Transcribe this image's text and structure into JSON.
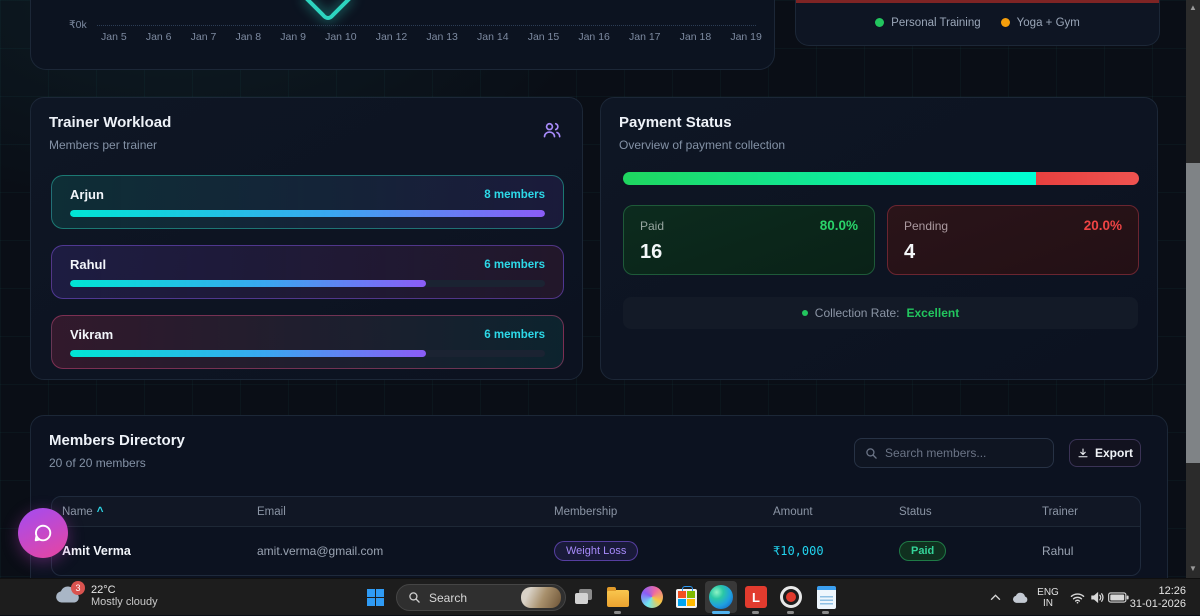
{
  "colors": {
    "accent_cyan": "#22d3ee",
    "green": "#22c55e",
    "red": "#ef4444",
    "purple": "#a78bfa",
    "amber": "#f59e0b",
    "teal_line": "#2dd4bf"
  },
  "revenue_chart": {
    "y_zero_label": "₹0k",
    "x_labels": [
      "Jan 5",
      "Jan 6",
      "Jan 7",
      "Jan 8",
      "Jan 9",
      "Jan 10",
      "Jan 12",
      "Jan 13",
      "Jan 14",
      "Jan 15",
      "Jan 16",
      "Jan 17",
      "Jan 18",
      "Jan 19"
    ]
  },
  "legend": {
    "items": [
      {
        "label": "Personal Training",
        "color": "#22c55e"
      },
      {
        "label": "Yoga + Gym",
        "color": "#f59e0b"
      }
    ]
  },
  "trainer_workload": {
    "title": "Trainer Workload",
    "subtitle": "Members per trainer",
    "trainers": [
      {
        "name": "Arjun",
        "members_label": "8 members",
        "percent": 100
      },
      {
        "name": "Rahul",
        "members_label": "6 members",
        "percent": 75
      },
      {
        "name": "Vikram",
        "members_label": "6 members",
        "percent": 75
      }
    ]
  },
  "payment_status": {
    "title": "Payment Status",
    "subtitle": "Overview of payment collection",
    "paid_percent": 80,
    "paid": {
      "label": "Paid",
      "percent_label": "80.0%",
      "value": "16"
    },
    "pending": {
      "label": "Pending",
      "percent_label": "20.0%",
      "value": "4"
    },
    "note_label": "Collection Rate:",
    "note_value": "Excellent"
  },
  "members_directory": {
    "title": "Members Directory",
    "subtitle": "20 of 20 members",
    "search_placeholder": "Search members...",
    "export_label": "Export",
    "sort_indicator": "^",
    "columns": [
      "Name",
      "Email",
      "Membership",
      "Amount",
      "Status",
      "Trainer"
    ],
    "rows": [
      {
        "name": "Amit Verma",
        "email": "amit.verma@gmail.com",
        "membership": "Weight Loss",
        "amount": "₹10,000",
        "status": "Paid",
        "trainer": "Rahul"
      }
    ]
  },
  "taskbar": {
    "weather": {
      "badge": "3",
      "temp": "22°C",
      "desc": "Mostly cloudy"
    },
    "search_label": "Search",
    "apps": [
      "task-view",
      "file-explorer",
      "copilot",
      "microsoft-store",
      "edge",
      "l-app",
      "screen-recorder",
      "notepad"
    ],
    "tray": {
      "lang_line1": "ENG",
      "lang_line2": "IN",
      "time": "12:26",
      "date": "31-01-2026"
    }
  }
}
